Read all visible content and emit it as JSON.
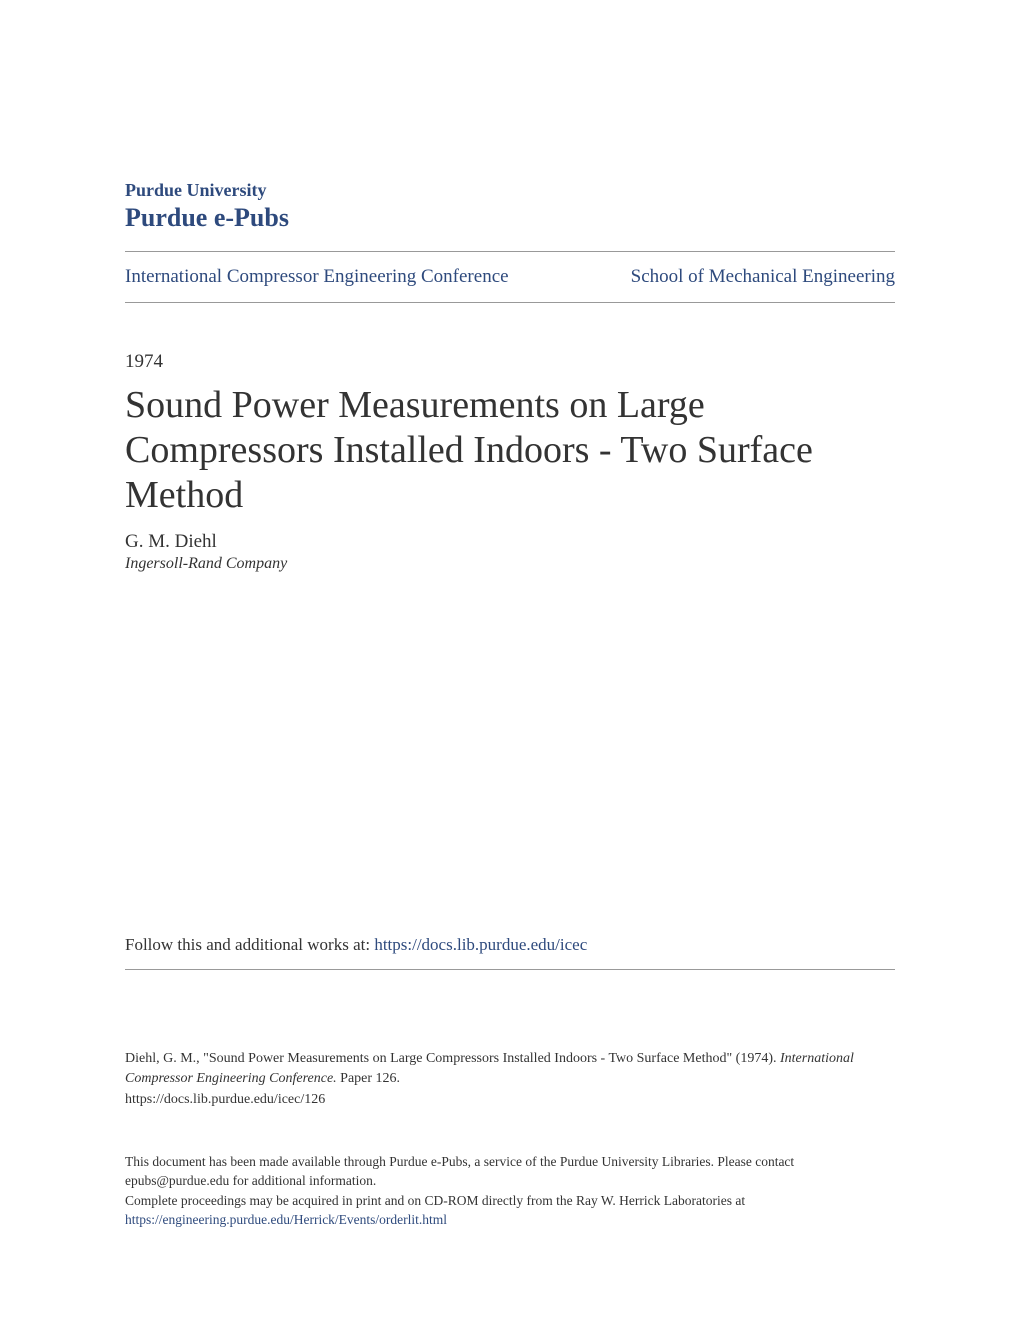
{
  "header": {
    "university": "Purdue University",
    "repository": "Purdue e-Pubs"
  },
  "nav": {
    "left": "International Compressor Engineering Conference",
    "right": "School of Mechanical Engineering"
  },
  "document": {
    "year": "1974",
    "title": "Sound Power Measurements on Large Compressors Installed Indoors - Two Surface Method",
    "author": "G. M. Diehl",
    "affiliation": "Ingersoll-Rand Company"
  },
  "follow": {
    "text": "Follow this and additional works at: ",
    "link": "https://docs.lib.purdue.edu/icec"
  },
  "citation": {
    "author_part": "Diehl, G. M., \"Sound Power Measurements on Large Compressors Installed Indoors - Two Surface Method\" (1974). ",
    "journal": "International Compressor Engineering Conference.",
    "paper": " Paper 126.",
    "url": "https://docs.lib.purdue.edu/icec/126"
  },
  "footer": {
    "line1": "This document has been made available through Purdue e-Pubs, a service of the Purdue University Libraries. Please contact epubs@purdue.edu for additional information.",
    "line2_prefix": "Complete proceedings may be acquired in print and on CD-ROM directly from the Ray W. Herrick Laboratories at ",
    "line2_link": "https://engineering.purdue.edu/Herrick/Events/orderlit.html"
  },
  "colors": {
    "link_blue": "#2e4a7d",
    "text_dark": "#333333",
    "divider": "#999999",
    "background": "#ffffff"
  }
}
